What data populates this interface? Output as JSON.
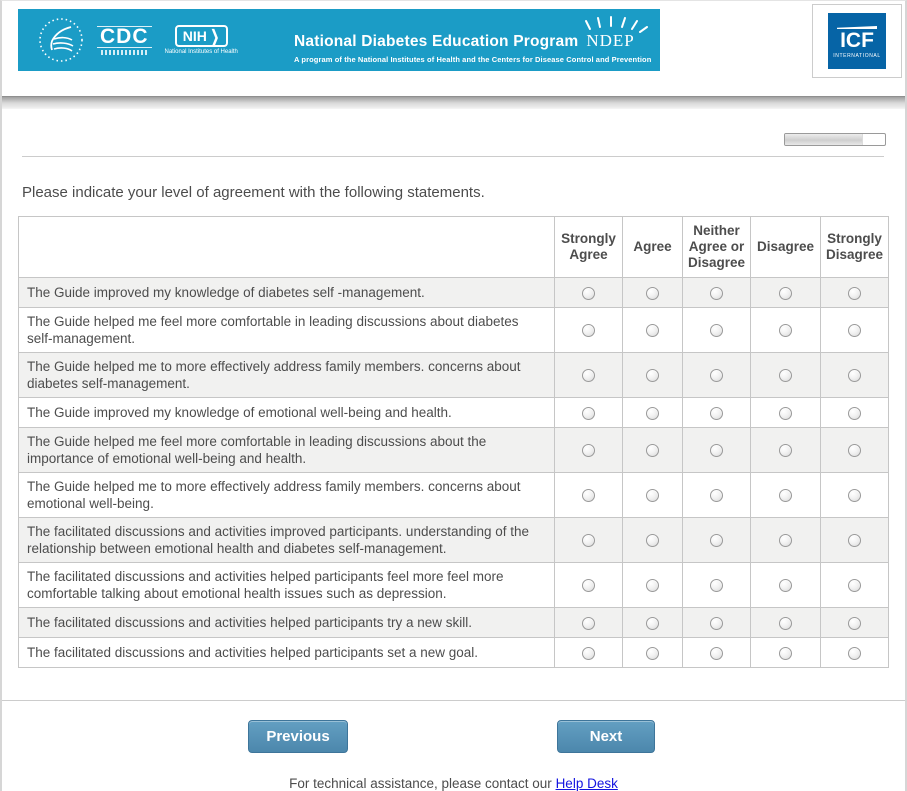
{
  "header": {
    "banner": {
      "program_title": "National Diabetes Education Program",
      "ndep_acronym": "NDEP",
      "tagline": "A program of the National Institutes of Health and the Centers for Disease Control and Prevention",
      "cdc_label": "CDC",
      "nih_label": "NIH",
      "nih_sublabel": "National Institutes of Health",
      "banner_color": "#1b9cc6"
    },
    "icf_logo": {
      "acronym": "ICF",
      "sublabel": "INTERNATIONAL",
      "brand_color": "#0664a6"
    }
  },
  "progress": {
    "percent": 78
  },
  "question": {
    "prompt": "Please indicate your level of agreement with the following statements."
  },
  "table": {
    "columns": [
      "Strongly Agree",
      "Agree",
      "Neither Agree or Disagree",
      "Disagree",
      "Strongly Disagree"
    ],
    "rows": [
      "The Guide improved my knowledge of diabetes self -management.",
      "The Guide helped me feel more comfortable in leading discussions about diabetes self-management.",
      "The Guide helped me to more effectively address family members. concerns about diabetes self-management.",
      "The Guide improved my knowledge of emotional well-being and health.",
      "The Guide helped me feel more comfortable in leading discussions about the importance of emotional well-being and health.",
      "The Guide helped me to more effectively address family members. concerns about emotional well-being.",
      "The facilitated discussions and activities improved participants. understanding of the relationship between emotional health and diabetes self-management.",
      "The facilitated discussions and activities helped participants feel more feel more comfortable talking about emotional health issues such as depression.",
      "The facilitated discussions and activities helped participants try a new skill.",
      "The facilitated discussions and activities helped participants set a new goal."
    ],
    "radio_states": "all-unselected"
  },
  "buttons": {
    "previous": "Previous",
    "next": "Next"
  },
  "footer": {
    "text": "For technical assistance, please contact our",
    "link": "Help Desk"
  },
  "colors": {
    "button_blue_top": "#639fc2",
    "button_blue_bottom": "#4c87ac",
    "row_stripe": "#f1f1f0",
    "table_border": "#c6c6c6",
    "link_blue": "#1414e0"
  }
}
